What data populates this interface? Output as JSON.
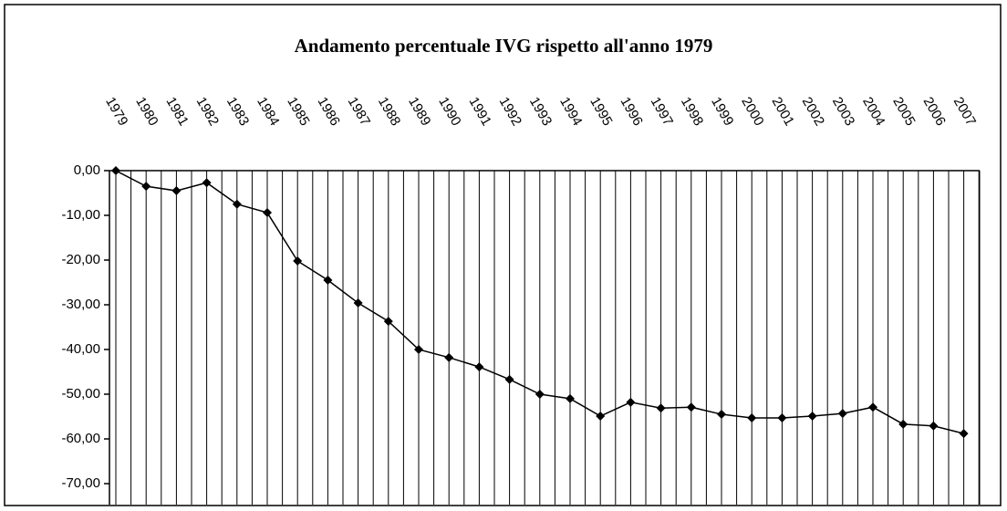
{
  "chart_data": {
    "type": "line",
    "title": "Andamento percentuale IVG rispetto all'anno 1979",
    "categories": [
      "1979",
      "1980",
      "1981",
      "1982",
      "1983",
      "1984",
      "1985",
      "1986",
      "1987",
      "1988",
      "1989",
      "1990",
      "1991",
      "1992",
      "1993",
      "1994",
      "1995",
      "1996",
      "1997",
      "1998",
      "1999",
      "2000",
      "2001",
      "2002",
      "2003",
      "2004",
      "2005",
      "2006",
      "2007"
    ],
    "series": [
      {
        "color": "#000000",
        "values": [
          0,
          -3.5,
          -4.5,
          -2.7,
          -7.5,
          -9.4,
          -20.2,
          -24.5,
          -29.6,
          -33.7,
          -40,
          -41.8,
          -43.9,
          -46.7,
          -50,
          -51,
          -54.9,
          -51.8,
          -53.1,
          -52.9,
          -54.5,
          -55.3,
          -55.3,
          -54.9,
          -54.3,
          -52.9,
          -56.7,
          -57.1,
          -58.8
        ]
      }
    ],
    "ylim": [
      -70,
      0
    ],
    "yticks": [
      {
        "value": 0,
        "label": "0,00"
      },
      {
        "value": -10,
        "label": "-10,00"
      },
      {
        "value": -20,
        "label": "-20,00"
      },
      {
        "value": -30,
        "label": "-30,00"
      },
      {
        "value": -40,
        "label": "-40,00"
      },
      {
        "value": -50,
        "label": "-50,00"
      },
      {
        "value": -60,
        "label": "-60,00"
      },
      {
        "value": -70,
        "label": "-70,00"
      }
    ]
  }
}
